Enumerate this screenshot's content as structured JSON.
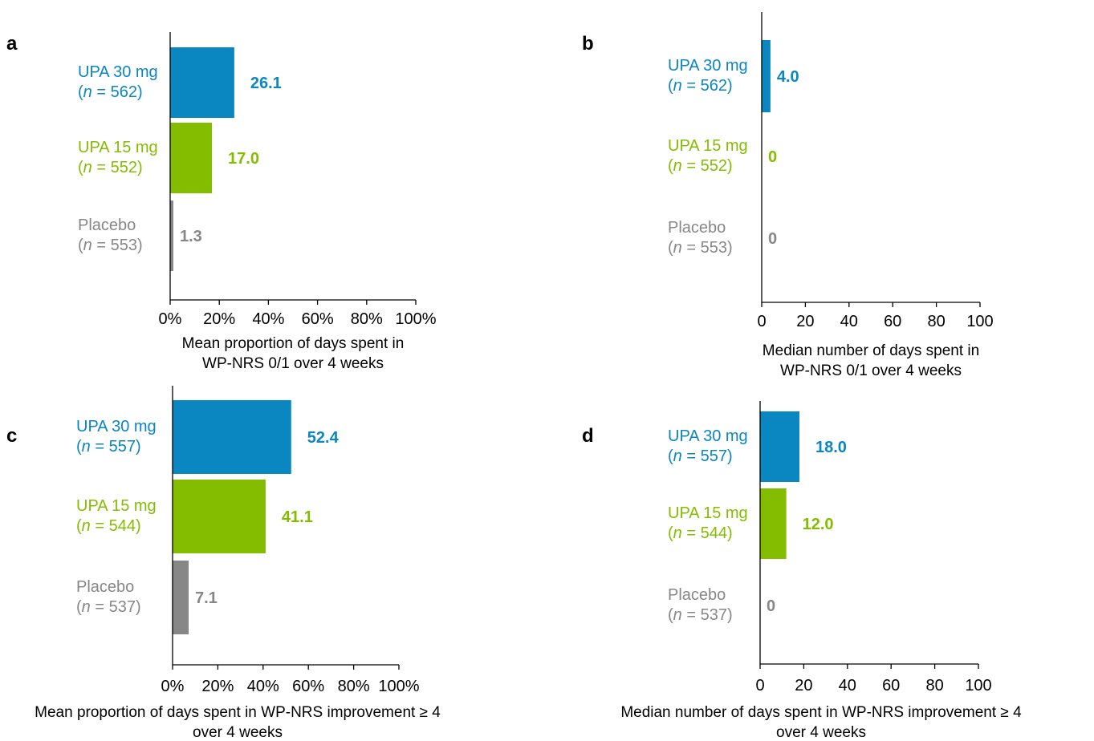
{
  "colors": {
    "upa30": "#0a86c1",
    "upa15": "#84bd00",
    "placebo": "#878787",
    "axis": "#000000"
  },
  "chart_data": [
    {
      "panel": "a",
      "type": "bar",
      "orientation": "horizontal",
      "xlim": [
        0,
        100
      ],
      "ticks": [
        "0%",
        "20%",
        "40%",
        "60%",
        "80%",
        "100%"
      ],
      "xlabel": [
        "Mean proportion of days spent in",
        "WP-NRS 0/1 over 4 weeks"
      ],
      "groups": [
        {
          "name": "UPA 30 mg",
          "n": "562",
          "value": 26.1,
          "value_label": "26.1",
          "color": "upa30"
        },
        {
          "name": "UPA 15 mg",
          "n": "552",
          "value": 17.0,
          "value_label": "17.0",
          "color": "upa15"
        },
        {
          "name": "Placebo",
          "n": "553",
          "value": 1.3,
          "value_label": "1.3",
          "color": "placebo"
        }
      ]
    },
    {
      "panel": "b",
      "type": "bar",
      "orientation": "horizontal",
      "xlim": [
        0,
        100
      ],
      "ticks": [
        "0",
        "20",
        "40",
        "60",
        "80",
        "100"
      ],
      "xlabel": [
        "Median number of days spent in",
        "WP-NRS 0/1 over 4 weeks"
      ],
      "groups": [
        {
          "name": "UPA 30 mg",
          "n": "562",
          "value": 4.0,
          "value_label": "4.0",
          "color": "upa30"
        },
        {
          "name": "UPA 15 mg",
          "n": "552",
          "value": 0,
          "value_label": "0",
          "color": "upa15"
        },
        {
          "name": "Placebo",
          "n": "553",
          "value": 0,
          "value_label": "0",
          "color": "placebo"
        }
      ]
    },
    {
      "panel": "c",
      "type": "bar",
      "orientation": "horizontal",
      "xlim": [
        0,
        100
      ],
      "ticks": [
        "0%",
        "20%",
        "40%",
        "60%",
        "80%",
        "100%"
      ],
      "xlabel": [
        "Mean proportion of days spent in WP-NRS improvement ≥ 4",
        "over 4 weeks"
      ],
      "groups": [
        {
          "name": "UPA 30 mg",
          "n": "557",
          "value": 52.4,
          "value_label": "52.4",
          "color": "upa30"
        },
        {
          "name": "UPA 15 mg",
          "n": "544",
          "value": 41.1,
          "value_label": "41.1",
          "color": "upa15"
        },
        {
          "name": "Placebo",
          "n": "537",
          "value": 7.1,
          "value_label": "7.1",
          "color": "placebo"
        }
      ]
    },
    {
      "panel": "d",
      "type": "bar",
      "orientation": "horizontal",
      "xlim": [
        0,
        100
      ],
      "ticks": [
        "0",
        "20",
        "40",
        "60",
        "80",
        "100"
      ],
      "xlabel": [
        "Median number of days spent in WP-NRS improvement ≥ 4",
        "over 4 weeks"
      ],
      "groups": [
        {
          "name": "UPA 30 mg",
          "n": "557",
          "value": 18.0,
          "value_label": "18.0",
          "color": "upa30"
        },
        {
          "name": "UPA 15 mg",
          "n": "544",
          "value": 12.0,
          "value_label": "12.0",
          "color": "upa15"
        },
        {
          "name": "Placebo",
          "n": "537",
          "value": 0,
          "value_label": "0",
          "color": "placebo"
        }
      ]
    }
  ]
}
